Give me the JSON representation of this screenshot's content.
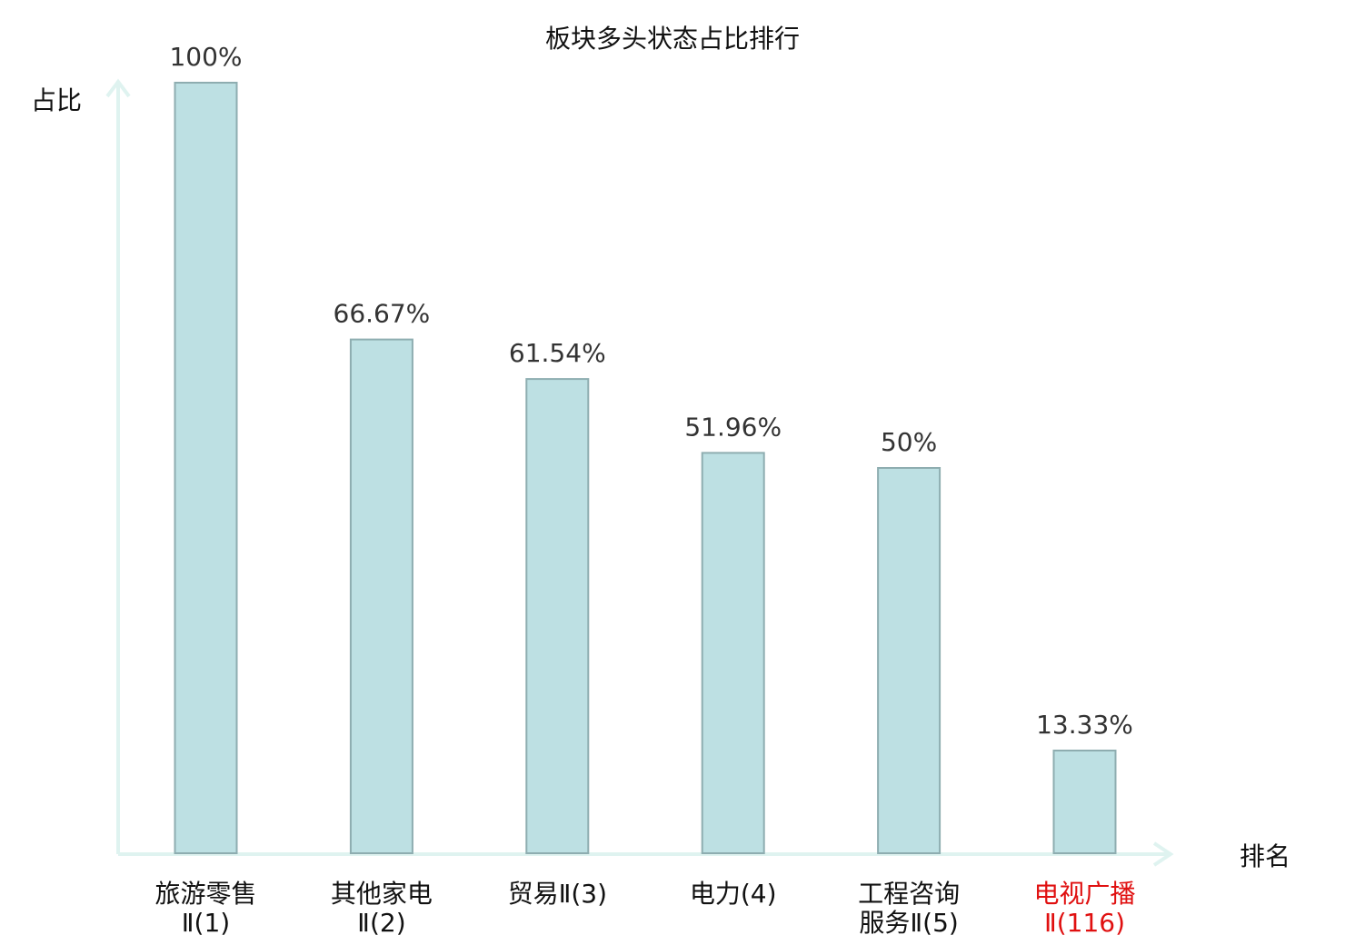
{
  "chart_data": {
    "type": "bar",
    "title": "板块多头状态占比排行",
    "ylabel": "占比",
    "xlabel": "排名",
    "ylim": [
      0,
      100
    ],
    "grid": false,
    "categories": [
      [
        "旅游零售",
        "Ⅱ(1)"
      ],
      [
        "其他家电",
        "Ⅱ(2)"
      ],
      [
        "贸易Ⅱ(3)"
      ],
      [
        "电力(4)"
      ],
      [
        "工程咨询",
        "服务Ⅱ(5)"
      ],
      [
        "电视广播",
        "Ⅱ(116)"
      ]
    ],
    "values": [
      100,
      66.67,
      61.54,
      51.96,
      50,
      13.33
    ],
    "value_labels": [
      "100%",
      "66.67%",
      "61.54%",
      "51.96%",
      "50%",
      "13.33%"
    ],
    "highlight_index": 5,
    "colors": {
      "bar_fill": "#bde0e3",
      "bar_stroke": "#8eadb0",
      "axis": "#dff3f0",
      "highlight_text": "#e01010",
      "text": "#111111"
    }
  }
}
